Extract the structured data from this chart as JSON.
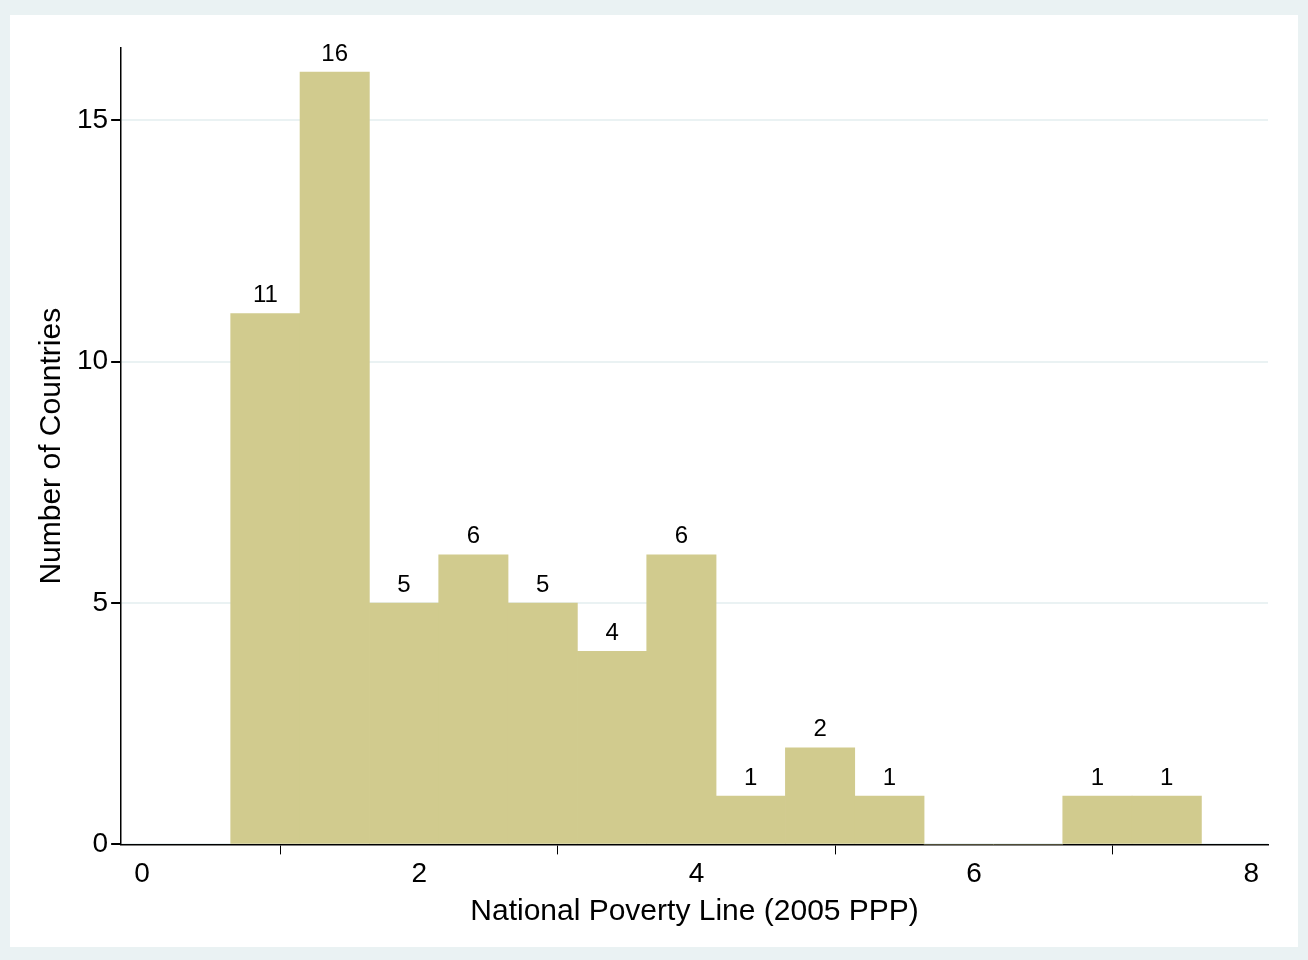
{
  "chart_data": {
    "type": "histogram",
    "xlabel": "National Poverty Line (2005 PPP)",
    "ylabel": "Number of Countries",
    "bins": [
      0.64,
      1.14,
      1.64,
      2.14,
      2.64,
      3.14,
      3.64,
      4.14,
      4.64,
      5.14,
      5.64,
      6.14,
      6.64,
      7.14,
      7.64
    ],
    "values": [
      11,
      16,
      5,
      6,
      5,
      4,
      6,
      1,
      2,
      1,
      0,
      0,
      1,
      1
    ],
    "value_labels": [
      "11",
      "16",
      "5",
      "6",
      "5",
      "4",
      "6",
      "1",
      "2",
      "1",
      null,
      null,
      "1",
      "1"
    ],
    "color": "#d1cb8e",
    "xlim": [
      -0.15,
      8.12
    ],
    "xticks": [
      0,
      2,
      4,
      6,
      8
    ],
    "ylim": [
      0,
      16.5
    ],
    "yticks": [
      0,
      5,
      10,
      15
    ],
    "grid": "y",
    "legend": false
  }
}
